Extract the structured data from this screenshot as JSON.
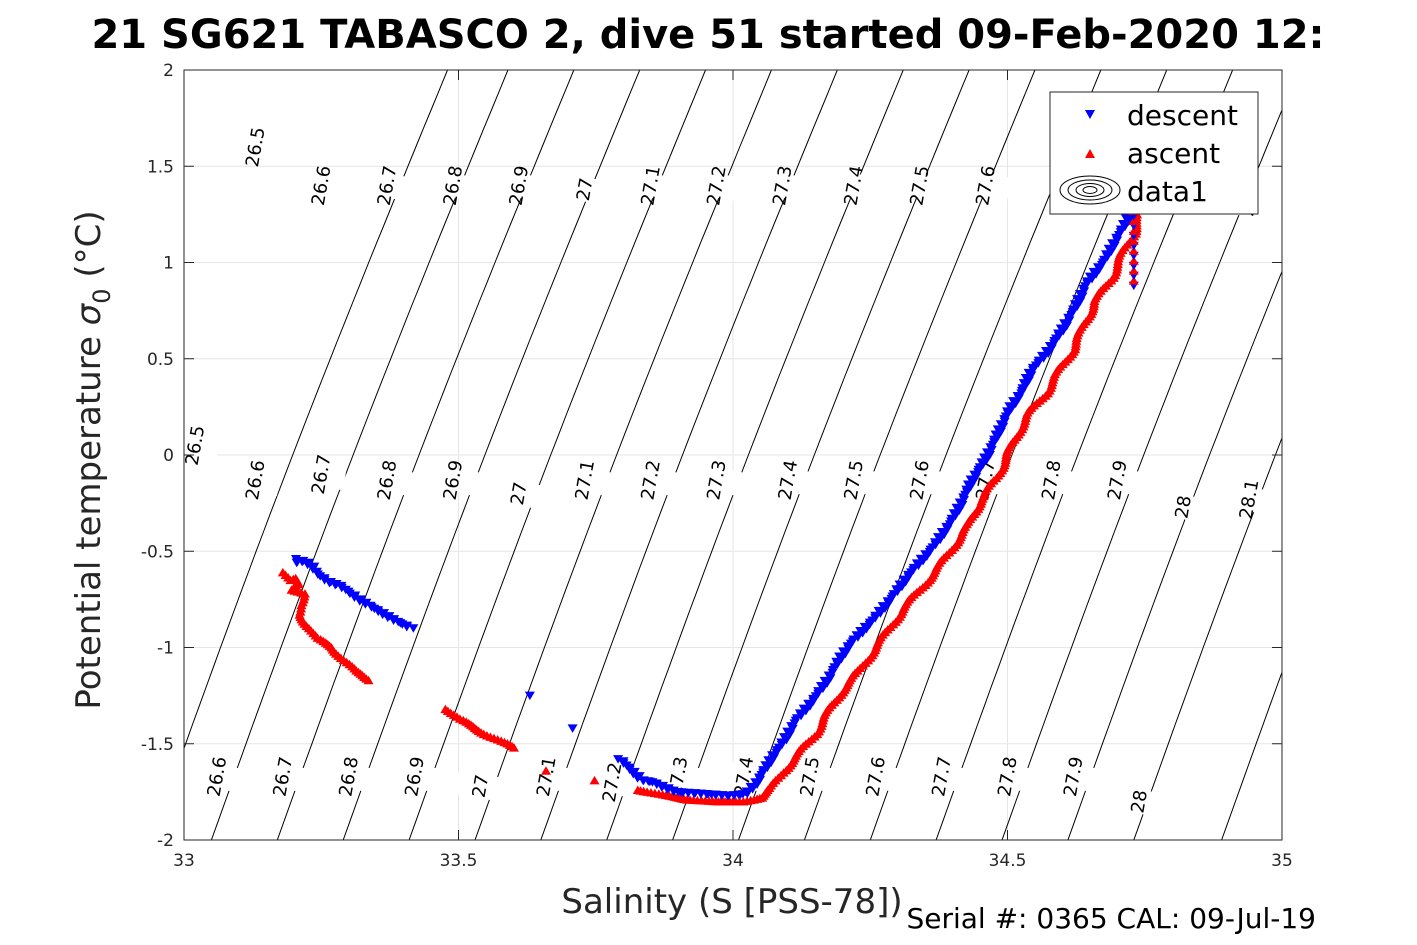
{
  "chart_data": {
    "type": "scatter",
    "title": "21 SG621 TABASCO 2, dive 51 started 09-Feb-2020 12:",
    "xlabel": "Salinity (S [PSS-78])",
    "ylabel_main": "Potential temperature ",
    "ylabel_sigma": "σ",
    "ylabel_sub": "0",
    "ylabel_unit": " (°C)",
    "xlim": [
      33,
      35
    ],
    "ylim": [
      -2,
      2
    ],
    "xticks": [
      {
        "v": 33,
        "label": "33"
      },
      {
        "v": 33.5,
        "label": "33.5"
      },
      {
        "v": 34,
        "label": "34"
      },
      {
        "v": 34.5,
        "label": "34.5"
      },
      {
        "v": 35,
        "label": "35"
      }
    ],
    "yticks": [
      {
        "v": -2,
        "label": "-2"
      },
      {
        "v": -1.5,
        "label": "-1.5"
      },
      {
        "v": -1,
        "label": "-1"
      },
      {
        "v": -0.5,
        "label": "-0.5"
      },
      {
        "v": 0,
        "label": "0"
      },
      {
        "v": 0.5,
        "label": "0.5"
      },
      {
        "v": 1,
        "label": "1"
      },
      {
        "v": 1.5,
        "label": "1.5"
      },
      {
        "v": 2,
        "label": "2"
      }
    ],
    "grid": true,
    "legend_position": "top-right",
    "colors": {
      "descent": "#0000ff",
      "ascent": "#ff0000",
      "contour": "#000000",
      "grid": "#e6e6e6",
      "axis": "#262626"
    },
    "series": [
      {
        "name": "descent",
        "marker": "triangle-down",
        "color": "#0000ff"
      },
      {
        "name": "ascent",
        "marker": "triangle-up",
        "color": "#ff0000"
      },
      {
        "name": "data1",
        "marker": "contour",
        "color": "#000000"
      }
    ],
    "contour_lines": [
      {
        "sigma": 26.5,
        "x_at_bottom": 32.94,
        "labels": [
          {
            "text": "26.5",
            "x": 33.13,
            "y": 1.6
          },
          {
            "text": "26.5",
            "x": 33.02,
            "y": 0.05
          }
        ]
      },
      {
        "sigma": 26.6,
        "x_at_bottom": 33.05,
        "labels": [
          {
            "text": "26.6",
            "x": 33.25,
            "y": 1.4
          },
          {
            "text": "26.6",
            "x": 33.13,
            "y": -0.13
          },
          {
            "text": "26.6",
            "x": 33.06,
            "y": -1.67
          }
        ]
      },
      {
        "sigma": 26.7,
        "x_at_bottom": 33.17,
        "labels": [
          {
            "text": "26.7",
            "x": 33.37,
            "y": 1.4
          },
          {
            "text": "26.7",
            "x": 33.25,
            "y": -0.1
          },
          {
            "text": "26.7",
            "x": 33.18,
            "y": -1.67
          }
        ]
      },
      {
        "sigma": 26.8,
        "x_at_bottom": 33.29,
        "labels": [
          {
            "text": "26.8",
            "x": 33.49,
            "y": 1.4
          },
          {
            "text": "26.8",
            "x": 33.37,
            "y": -0.13
          },
          {
            "text": "26.8",
            "x": 33.3,
            "y": -1.67
          }
        ]
      },
      {
        "sigma": 26.9,
        "x_at_bottom": 33.41,
        "labels": [
          {
            "text": "26.9",
            "x": 33.61,
            "y": 1.4
          },
          {
            "text": "26.9",
            "x": 33.49,
            "y": -0.13
          },
          {
            "text": "26.9",
            "x": 33.42,
            "y": -1.67
          }
        ]
      },
      {
        "sigma": 27.0,
        "x_at_bottom": 33.53,
        "labels": [
          {
            "text": "27",
            "x": 33.73,
            "y": 1.38
          },
          {
            "text": "27",
            "x": 33.61,
            "y": -0.2
          },
          {
            "text": "27",
            "x": 33.54,
            "y": -1.72
          }
        ]
      },
      {
        "sigma": 27.1,
        "x_at_bottom": 33.65,
        "labels": [
          {
            "text": "27.1",
            "x": 33.85,
            "y": 1.4
          },
          {
            "text": "27.1",
            "x": 33.73,
            "y": -0.13
          },
          {
            "text": "27.1",
            "x": 33.66,
            "y": -1.67
          }
        ]
      },
      {
        "sigma": 27.2,
        "x_at_bottom": 33.77,
        "labels": [
          {
            "text": "27.2",
            "x": 33.97,
            "y": 1.4
          },
          {
            "text": "27.2",
            "x": 33.85,
            "y": -0.13
          },
          {
            "text": "27.2",
            "x": 33.78,
            "y": -1.7
          }
        ]
      },
      {
        "sigma": 27.3,
        "x_at_bottom": 33.89,
        "labels": [
          {
            "text": "27.3",
            "x": 34.09,
            "y": 1.4
          },
          {
            "text": "27.3",
            "x": 33.97,
            "y": -0.13
          },
          {
            "text": "27.3",
            "x": 33.9,
            "y": -1.67
          }
        ]
      },
      {
        "sigma": 27.4,
        "x_at_bottom": 34.01,
        "labels": [
          {
            "text": "27.4",
            "x": 34.22,
            "y": 1.4
          },
          {
            "text": "27.4",
            "x": 34.1,
            "y": -0.13
          },
          {
            "text": "27.4",
            "x": 34.02,
            "y": -1.67
          }
        ]
      },
      {
        "sigma": 27.5,
        "x_at_bottom": 34.13,
        "labels": [
          {
            "text": "27.5",
            "x": 34.34,
            "y": 1.4
          },
          {
            "text": "27.5",
            "x": 34.22,
            "y": -0.13
          },
          {
            "text": "27.5",
            "x": 34.14,
            "y": -1.67
          }
        ]
      },
      {
        "sigma": 27.6,
        "x_at_bottom": 34.25,
        "labels": [
          {
            "text": "27.6",
            "x": 34.46,
            "y": 1.4
          },
          {
            "text": "27.6",
            "x": 34.34,
            "y": -0.13
          },
          {
            "text": "27.6",
            "x": 34.26,
            "y": -1.67
          }
        ]
      },
      {
        "sigma": 27.7,
        "x_at_bottom": 34.37,
        "labels": [
          {
            "text": "27.7",
            "x": 34.46,
            "y": -0.13
          },
          {
            "text": "27.7",
            "x": 34.38,
            "y": -1.67
          }
        ]
      },
      {
        "sigma": 27.8,
        "x_at_bottom": 34.49,
        "labels": [
          {
            "text": "27.8",
            "x": 34.58,
            "y": -0.13
          },
          {
            "text": "27.8",
            "x": 34.5,
            "y": -1.67
          }
        ]
      },
      {
        "sigma": 27.9,
        "x_at_bottom": 34.61,
        "labels": [
          {
            "text": "27.9",
            "x": 34.7,
            "y": -0.13
          },
          {
            "text": "27.9",
            "x": 34.62,
            "y": -1.67
          }
        ]
      },
      {
        "sigma": 28.0,
        "x_at_bottom": 34.73,
        "labels": [
          {
            "text": "28",
            "x": 34.94,
            "y": 1.3
          },
          {
            "text": "28",
            "x": 34.82,
            "y": -0.27
          },
          {
            "text": "28",
            "x": 34.74,
            "y": -1.8
          }
        ]
      },
      {
        "sigma": 28.1,
        "x_at_bottom": 34.89,
        "labels": [
          {
            "text": "28.1",
            "x": 34.94,
            "y": -0.23
          }
        ]
      }
    ],
    "descent_path": [
      [
        33.21,
        -0.56
      ],
      [
        33.21,
        -0.58
      ],
      [
        33.22,
        -0.57
      ],
      [
        33.23,
        -0.58
      ],
      [
        33.24,
        -0.6
      ],
      [
        33.25,
        -0.64
      ],
      [
        33.27,
        -0.68
      ],
      [
        33.29,
        -0.7
      ],
      [
        33.31,
        -0.74
      ],
      [
        33.33,
        -0.78
      ],
      [
        33.39,
        -0.88
      ],
      [
        33.42,
        -0.92
      ],
      [
        33.64,
        -1.27
      ],
      [
        33.71,
        -1.44
      ],
      [
        33.8,
        -1.6
      ],
      [
        33.84,
        -1.71
      ],
      [
        33.86,
        -1.72
      ],
      [
        33.9,
        -1.77
      ],
      [
        33.95,
        -1.78
      ],
      [
        34.0,
        -1.79
      ],
      [
        34.03,
        -1.78
      ],
      [
        34.05,
        -1.72
      ],
      [
        34.06,
        -1.67
      ],
      [
        34.08,
        -1.58
      ],
      [
        34.1,
        -1.5
      ],
      [
        34.12,
        -1.4
      ],
      [
        34.15,
        -1.3
      ],
      [
        34.18,
        -1.18
      ],
      [
        34.2,
        -1.08
      ],
      [
        34.22,
        -1.0
      ],
      [
        34.26,
        -0.88
      ],
      [
        34.29,
        -0.78
      ],
      [
        34.33,
        -0.63
      ],
      [
        34.37,
        -0.5
      ],
      [
        34.4,
        -0.38
      ],
      [
        34.42,
        -0.28
      ],
      [
        34.44,
        -0.16
      ],
      [
        34.47,
        -0.02
      ],
      [
        34.49,
        0.1
      ],
      [
        34.51,
        0.22
      ],
      [
        34.53,
        0.3
      ],
      [
        34.55,
        0.42
      ],
      [
        34.58,
        0.52
      ],
      [
        34.61,
        0.65
      ],
      [
        34.63,
        0.75
      ],
      [
        34.65,
        0.87
      ],
      [
        34.68,
        0.98
      ],
      [
        34.7,
        1.08
      ],
      [
        34.72,
        1.18
      ],
      [
        34.74,
        1.28
      ]
    ],
    "ascent_path": [
      [
        33.18,
        -0.61
      ],
      [
        33.19,
        -0.65
      ],
      [
        33.2,
        -0.64
      ],
      [
        33.21,
        -0.67
      ],
      [
        33.2,
        -0.7
      ],
      [
        33.22,
        -0.72
      ],
      [
        33.21,
        -0.78
      ],
      [
        33.21,
        -0.83
      ],
      [
        33.23,
        -0.9
      ],
      [
        33.24,
        -0.95
      ],
      [
        33.27,
        -1.0
      ],
      [
        33.31,
        -1.12
      ],
      [
        33.34,
        -1.17
      ],
      [
        33.48,
        -1.32
      ],
      [
        33.5,
        -1.37
      ],
      [
        33.55,
        -1.45
      ],
      [
        33.6,
        -1.52
      ],
      [
        33.66,
        -1.64
      ],
      [
        33.75,
        -1.69
      ],
      [
        33.83,
        -1.74
      ],
      [
        33.88,
        -1.77
      ],
      [
        33.92,
        -1.79
      ],
      [
        33.97,
        -1.8
      ],
      [
        34.02,
        -1.8
      ],
      [
        34.05,
        -1.78
      ],
      [
        34.07,
        -1.73
      ],
      [
        34.09,
        -1.65
      ],
      [
        34.12,
        -1.55
      ],
      [
        34.15,
        -1.45
      ],
      [
        34.17,
        -1.35
      ],
      [
        34.2,
        -1.22
      ],
      [
        34.23,
        -1.12
      ],
      [
        34.26,
        -1.0
      ],
      [
        34.29,
        -0.88
      ],
      [
        34.31,
        -0.8
      ],
      [
        34.34,
        -0.7
      ],
      [
        34.37,
        -0.6
      ],
      [
        34.4,
        -0.48
      ],
      [
        34.43,
        -0.36
      ],
      [
        34.45,
        -0.24
      ],
      [
        34.48,
        -0.12
      ],
      [
        34.5,
        0.0
      ],
      [
        34.52,
        0.12
      ],
      [
        34.54,
        0.22
      ],
      [
        34.57,
        0.32
      ],
      [
        34.59,
        0.42
      ],
      [
        34.62,
        0.55
      ],
      [
        34.64,
        0.68
      ],
      [
        34.66,
        0.8
      ],
      [
        34.69,
        0.92
      ],
      [
        34.71,
        1.05
      ],
      [
        34.73,
        1.15
      ],
      [
        34.74,
        1.25
      ]
    ],
    "bottom_cluster": {
      "x": 34.73,
      "y_from": 0.88,
      "y_to": 1.5
    }
  },
  "legend": {
    "descent": "descent",
    "ascent": "ascent",
    "data1": "data1"
  },
  "footer": "Serial #: 0365  CAL: 09-Jul-19"
}
